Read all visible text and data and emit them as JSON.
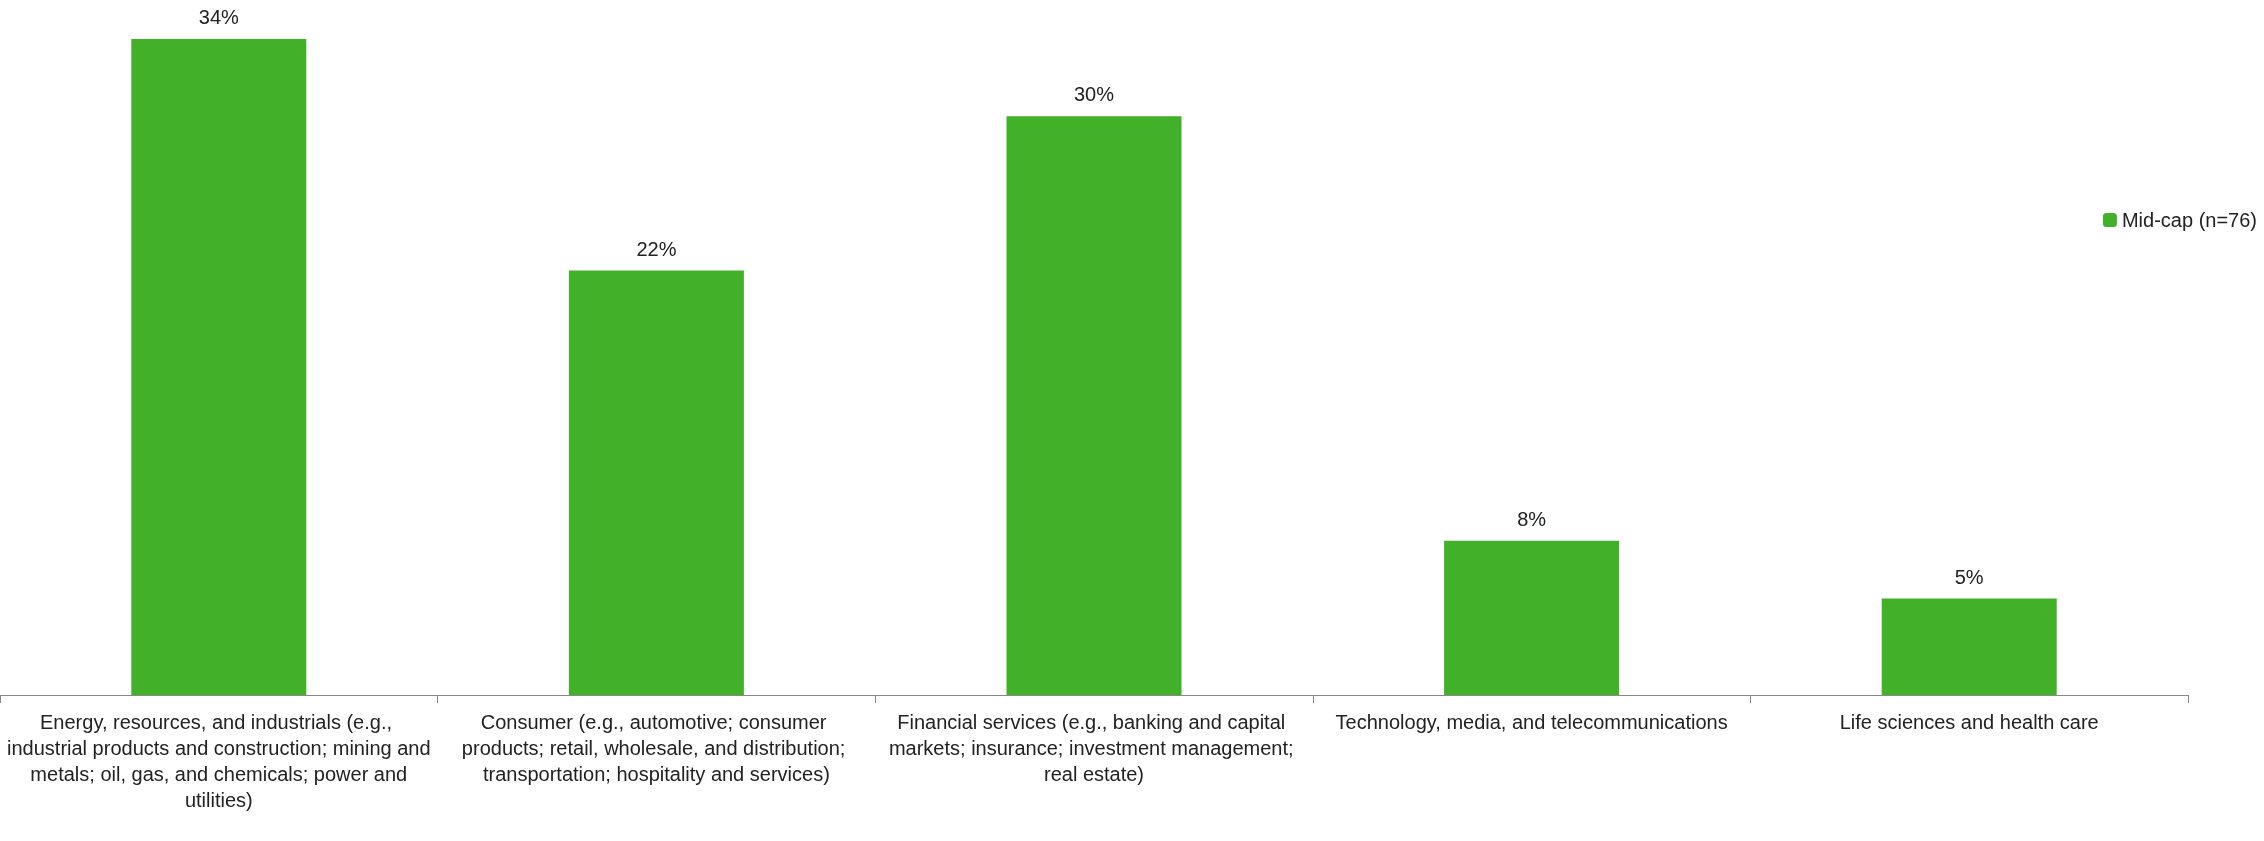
{
  "chart_data": {
    "type": "bar",
    "categories": [
      "Energy, resources, and industrials (e.g., industrial products and construction; mining and metals; oil, gas, and chemicals; power and utilities)",
      "Consumer (e.g., automotive; consumer products; retail, wholesale, and distribution; transportation; hospitality and services)",
      "Financial services (e.g., banking and capital markets; insurance; investment management; real estate)",
      "Technology, media, and telecommunications",
      "Life sciences and health care"
    ],
    "series": [
      {
        "name": "Mid-cap (n=76)",
        "color": "#43b02a",
        "values": [
          34,
          22,
          30,
          8,
          5
        ],
        "value_labels": [
          "34%",
          "22%",
          "30%",
          "8%",
          "5%"
        ]
      }
    ],
    "legend": "right"
  }
}
